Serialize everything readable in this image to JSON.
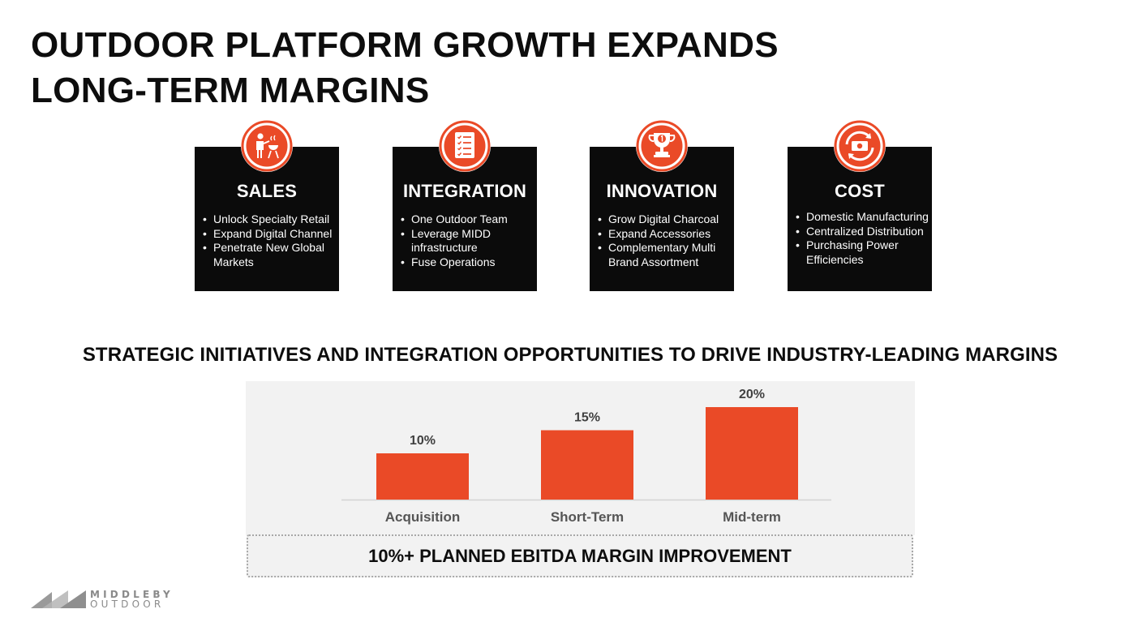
{
  "title": {
    "line1": "OUTDOOR PLATFORM GROWTH EXPANDS",
    "line2": "LONG-TERM MARGINS"
  },
  "cards": [
    {
      "icon": "grill-icon",
      "title": "SALES",
      "bullets": [
        "Unlock Specialty Retail",
        "Expand Digital Channel",
        "Penetrate New Global",
        "Markets"
      ]
    },
    {
      "icon": "checklist-icon",
      "title": "INTEGRATION",
      "bullets": [
        "One Outdoor Team",
        "Leverage MIDD",
        "infrastructure",
        "Fuse Operations"
      ]
    },
    {
      "icon": "trophy-icon",
      "title": "INNOVATION",
      "bullets": [
        "Grow Digital Charcoal",
        "Expand Accessories",
        "Complementary Multi",
        "Brand Assortment"
      ]
    },
    {
      "icon": "money-cycle-icon",
      "title": "COST",
      "bullets": [
        "Domestic Manufacturing",
        "Centralized Distribution",
        "Purchasing Power",
        "Efficiencies"
      ]
    }
  ],
  "subtitle": "STRATEGIC INITIATIVES AND INTEGRATION OPPORTUNITIES TO DRIVE INDUSTRY-LEADING MARGINS",
  "accent_color": "#ea4a27",
  "chart_data": {
    "type": "bar",
    "categories": [
      "Acquisition",
      "Short-Term",
      "Mid-term"
    ],
    "values": [
      10,
      15,
      20
    ],
    "data_labels": [
      "10%",
      "15%",
      "20%"
    ],
    "title": "",
    "xlabel": "",
    "ylabel": "",
    "ylim": [
      0,
      20
    ],
    "grid": false,
    "legend": "none",
    "bar_color": "#ea4a27"
  },
  "callout": "10%+ PLANNED EBITDA MARGIN IMPROVEMENT",
  "logo": {
    "line1": "MIDDLEBY",
    "line2": "OUTDOOR"
  }
}
